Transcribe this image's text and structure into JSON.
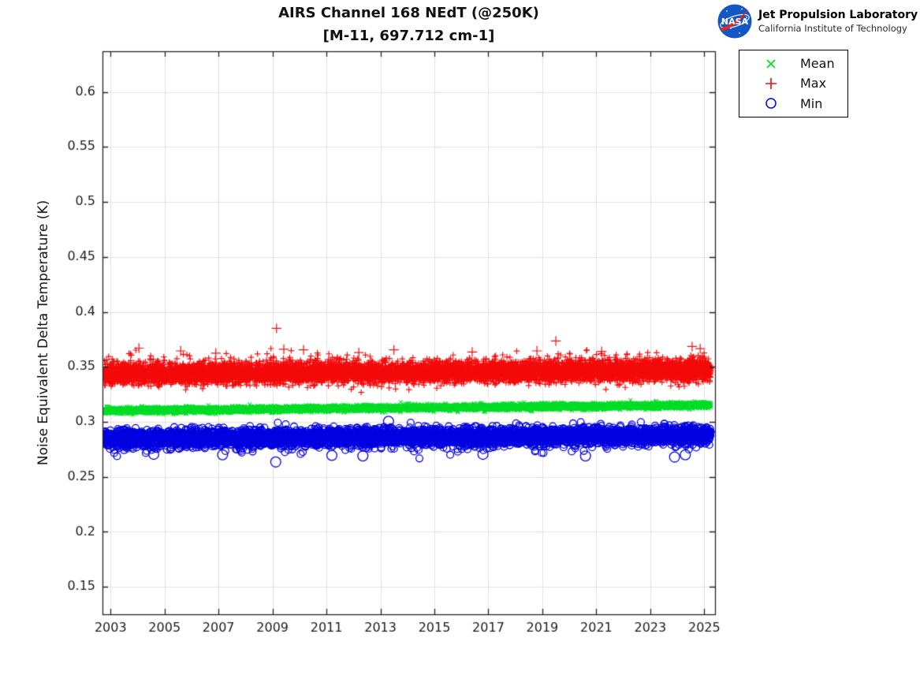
{
  "header": {
    "logo": {
      "org": "NASA",
      "name": "Jet Propulsion Laboratory",
      "affiliation": "California Institute of Technology",
      "nasa_blue": "#1357c4",
      "nasa_red": "#e8251f"
    }
  },
  "chart_data": {
    "type": "scatter",
    "title": "AIRS Channel 168 NEdT (@250K)",
    "subtitle": "[M-11, 697.712 cm-1]",
    "xlabel": "",
    "ylabel": "Noise Equivalent Delta Temperature (K)",
    "xlim": [
      2002.7,
      2025.4
    ],
    "ylim": [
      0.125,
      0.637
    ],
    "xticks": [
      2003,
      2005,
      2007,
      2009,
      2011,
      2013,
      2015,
      2017,
      2019,
      2021,
      2023,
      2025
    ],
    "yticks": [
      0.15,
      0.2,
      0.25,
      0.3,
      0.35,
      0.4,
      0.45,
      0.5,
      0.55,
      0.6
    ],
    "ytick_labels": [
      "0.15",
      "0.2",
      "0.25",
      "0.3",
      "0.35",
      "0.4",
      "0.45",
      "0.5",
      "0.55",
      "0.6"
    ],
    "grid": true,
    "grid_color": "#e2e2e2",
    "frame_color": "#262626",
    "tick_label_color": "#1a1a1a",
    "legend": {
      "position": "outside-top-right",
      "entries": [
        "Mean",
        "Max",
        "Min"
      ]
    },
    "data_x_range": [
      2002.75,
      2025.25
    ],
    "series": [
      {
        "name": "Mean",
        "marker": "x",
        "color": "#00dd26",
        "points_n": 9000,
        "marker_size": 2.4,
        "line_width": 1.1,
        "seed": 101,
        "band": {
          "y_start": 0.3102,
          "y_end": 0.3152,
          "sigma": 0.0013,
          "tail_p": 0,
          "tail_lo": 0,
          "tail_hi": 0,
          "tail_dir": 1
        },
        "outliers": [],
        "outlier_size": 4
      },
      {
        "name": "Max",
        "marker": "+",
        "color": "#f40b0b",
        "points_n": 9000,
        "marker_size": 3.8,
        "line_width": 1.2,
        "seed": 202,
        "band": {
          "y_start": 0.3435,
          "y_end": 0.3468,
          "sigma": 0.0045,
          "tail_p": 0.03,
          "tail_lo": 0.004,
          "tail_hi": 0.013,
          "tail_dir": 1
        },
        "outliers": [
          [
            2009.15,
            0.385
          ],
          [
            2019.5,
            0.3735
          ],
          [
            2004.05,
            0.367
          ],
          [
            2009.42,
            0.366
          ],
          [
            2010.15,
            0.3655
          ],
          [
            2005.6,
            0.3645
          ],
          [
            2006.9,
            0.3625
          ],
          [
            2012.2,
            0.363
          ],
          [
            2013.5,
            0.3655
          ],
          [
            2016.4,
            0.3635
          ],
          [
            2018.8,
            0.3645
          ],
          [
            2021.2,
            0.364
          ],
          [
            2024.55,
            0.3685
          ],
          [
            2024.85,
            0.3665
          ]
        ],
        "outlier_size": 6.2
      },
      {
        "name": "Min",
        "marker": "o",
        "color": "#0000e0",
        "points_n": 5200,
        "marker_size": 4.4,
        "line_width": 1.3,
        "seed": 303,
        "band": {
          "y_start": 0.2845,
          "y_end": 0.2882,
          "sigma": 0.0038,
          "tail_p": 0.02,
          "tail_lo": 0.003,
          "tail_hi": 0.012,
          "tail_dir": -1
        },
        "outliers": [
          [
            2009.12,
            0.2635
          ],
          [
            2013.3,
            0.3005
          ],
          [
            2004.6,
            0.2705
          ],
          [
            2007.15,
            0.27
          ],
          [
            2011.2,
            0.2695
          ],
          [
            2012.35,
            0.269
          ],
          [
            2016.8,
            0.2705
          ],
          [
            2020.6,
            0.269
          ],
          [
            2023.9,
            0.268
          ],
          [
            2024.3,
            0.27
          ]
        ],
        "outlier_size": 6.4
      }
    ]
  }
}
